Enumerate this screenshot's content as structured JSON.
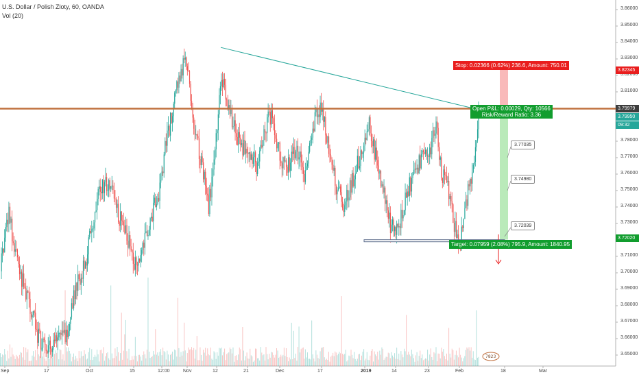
{
  "header": {
    "symbol_line": "U.S. Dollar / Polish Zloty, 60, OANDA",
    "volume_line": "Vol (20)"
  },
  "trade": {
    "stop_label": "Stop: 0.02366 (0.62%) 236.6, Amount: 750.01",
    "open_label": "Open P&L: 0.00029, Qty: 10566",
    "risk_reward_label": "Risk/Reward Ratio: 3.36",
    "target_label": "Target: 0.07959 (2.08%) 795.9, Amount: 1840.95"
  },
  "callouts": [
    "3.77035",
    "3.74980",
    "3.72039"
  ],
  "price_axis": {
    "ticks": [
      "3.86000",
      "3.85000",
      "3.84000",
      "3.83000",
      "3.82000",
      "3.81000",
      "3.80000",
      "3.79000",
      "3.78000",
      "3.77000",
      "3.76000",
      "3.75000",
      "3.74000",
      "3.73000",
      "3.72000",
      "3.71000",
      "3.70000",
      "3.69000",
      "3.68000",
      "3.67000",
      "3.66000",
      "3.65000"
    ],
    "tags": {
      "stop": "3.82345",
      "last": "3.79979",
      "entry": "3.79950",
      "countdown": "09:32",
      "target": "3.72020"
    }
  },
  "time_axis": [
    "Sep",
    "17",
    "Oct",
    "15",
    "12:00",
    "Nov",
    "12",
    "21",
    "Dec",
    "17",
    "2019",
    "14",
    "23",
    "Feb",
    "18",
    "Mar"
  ],
  "colors": {
    "up": "#26a69a",
    "down": "#ef5350",
    "resistance": "#c0703e",
    "trendline": "#26a69a",
    "support": "#5d6d8c",
    "stop_zone": "#f7a9a9",
    "target_zone": "#a9e5a9",
    "stop_tag": "#e91e1e",
    "target_tag": "#119d2e"
  },
  "chart_data": {
    "type": "candlestick",
    "symbol": "USD/PLN",
    "ylim": [
      3.645,
      3.865
    ],
    "anchors": [
      [
        0,
        3.705
      ],
      [
        12,
        3.735
      ],
      [
        22,
        3.715
      ],
      [
        32,
        3.695
      ],
      [
        44,
        3.68
      ],
      [
        56,
        3.66
      ],
      [
        68,
        3.655
      ],
      [
        80,
        3.66
      ],
      [
        96,
        3.66
      ],
      [
        110,
        3.69
      ],
      [
        124,
        3.705
      ],
      [
        138,
        3.74
      ],
      [
        152,
        3.755
      ],
      [
        164,
        3.75
      ],
      [
        176,
        3.73
      ],
      [
        186,
        3.72
      ],
      [
        196,
        3.705
      ],
      [
        206,
        3.715
      ],
      [
        218,
        3.73
      ],
      [
        232,
        3.75
      ],
      [
        242,
        3.78
      ],
      [
        252,
        3.8
      ],
      [
        262,
        3.82
      ],
      [
        272,
        3.83
      ],
      [
        280,
        3.79
      ],
      [
        292,
        3.77
      ],
      [
        304,
        3.74
      ],
      [
        312,
        3.77
      ],
      [
        322,
        3.82
      ],
      [
        332,
        3.8
      ],
      [
        346,
        3.78
      ],
      [
        360,
        3.775
      ],
      [
        374,
        3.765
      ],
      [
        386,
        3.79
      ],
      [
        396,
        3.795
      ],
      [
        408,
        3.77
      ],
      [
        420,
        3.765
      ],
      [
        432,
        3.775
      ],
      [
        444,
        3.76
      ],
      [
        456,
        3.79
      ],
      [
        466,
        3.8
      ],
      [
        478,
        3.78
      ],
      [
        488,
        3.755
      ],
      [
        500,
        3.74
      ],
      [
        512,
        3.755
      ],
      [
        524,
        3.77
      ],
      [
        538,
        3.79
      ],
      [
        548,
        3.77
      ],
      [
        556,
        3.755
      ],
      [
        568,
        3.73
      ],
      [
        578,
        3.725
      ],
      [
        590,
        3.745
      ],
      [
        602,
        3.76
      ],
      [
        614,
        3.77
      ],
      [
        626,
        3.775
      ],
      [
        636,
        3.79
      ],
      [
        644,
        3.76
      ],
      [
        654,
        3.75
      ],
      [
        664,
        3.725
      ],
      [
        670,
        3.715
      ],
      [
        680,
        3.745
      ],
      [
        688,
        3.76
      ],
      [
        698,
        3.799
      ]
    ],
    "annotations": {
      "resistance": 3.7998,
      "support": 3.7195,
      "trend_start": [
        322,
        3.837
      ],
      "trend_end": [
        690,
        3.8
      ],
      "stop": 3.82345,
      "entry": 3.7995,
      "target": 3.7202
    }
  }
}
